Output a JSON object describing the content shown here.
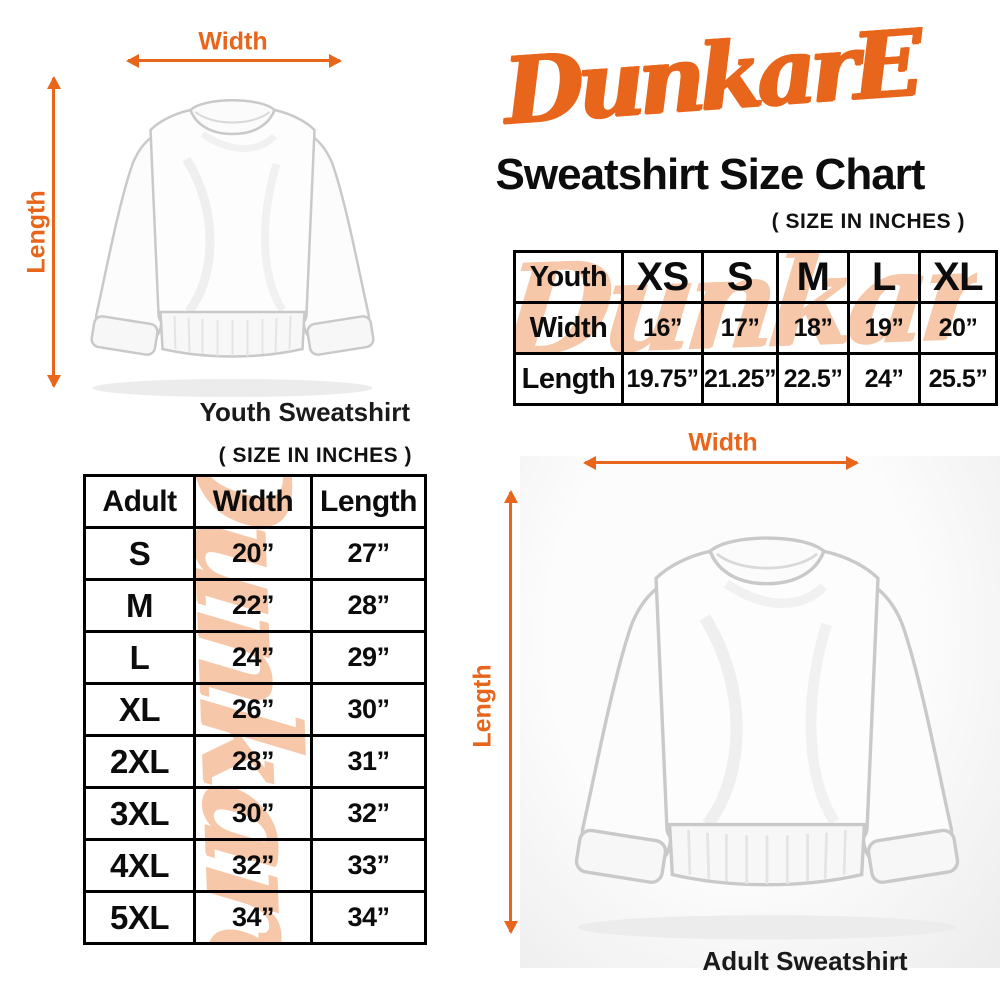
{
  "colors": {
    "accent_orange": "#E8651C",
    "watermark_peach": "#F6C7A8",
    "table_border": "#000000",
    "text_black": "#111111"
  },
  "brand": {
    "logo_text": "DunkarE",
    "title": "Sweatshirt Size Chart",
    "watermark_text": "Dunkare"
  },
  "youth_figure": {
    "width_label": "Width",
    "length_label": "Length",
    "caption": "Youth Sweatshirt"
  },
  "adult_figure": {
    "width_label": "Width",
    "length_label": "Length",
    "caption": "Adult Sweatshirt"
  },
  "youth_table": {
    "size_note": "( SIZE IN INCHES )",
    "header_label": "Youth",
    "sizes": [
      "XS",
      "S",
      "M",
      "L",
      "XL"
    ],
    "rows": [
      {
        "label": "Width",
        "values": [
          "16”",
          "17”",
          "18”",
          "19”",
          "20”"
        ]
      },
      {
        "label": "Length",
        "values": [
          "19.75”",
          "21.25”",
          "22.5”",
          "24”",
          "25.5”"
        ]
      }
    ]
  },
  "adult_table": {
    "size_note": "( SIZE IN INCHES )",
    "headers": [
      "Adult",
      "Width",
      "Length"
    ],
    "rows": [
      [
        "S",
        "20”",
        "27”"
      ],
      [
        "M",
        "22”",
        "28”"
      ],
      [
        "L",
        "24”",
        "29”"
      ],
      [
        "XL",
        "26”",
        "30”"
      ],
      [
        "2XL",
        "28”",
        "31”"
      ],
      [
        "3XL",
        "30”",
        "32”"
      ],
      [
        "4XL",
        "32”",
        "33”"
      ],
      [
        "5XL",
        "34”",
        "34”"
      ]
    ]
  },
  "chart_data": [
    {
      "type": "table",
      "title": "Youth Sweatshirt Size Chart",
      "units": "inches",
      "columns": [
        "Youth",
        "XS",
        "S",
        "M",
        "L",
        "XL"
      ],
      "rows": [
        [
          "Width",
          16,
          17,
          18,
          19,
          20
        ],
        [
          "Length",
          19.75,
          21.25,
          22.5,
          24,
          25.5
        ]
      ]
    },
    {
      "type": "table",
      "title": "Adult Sweatshirt Size Chart",
      "units": "inches",
      "columns": [
        "Adult",
        "Width",
        "Length"
      ],
      "rows": [
        [
          "S",
          20,
          27
        ],
        [
          "M",
          22,
          28
        ],
        [
          "L",
          24,
          29
        ],
        [
          "XL",
          26,
          30
        ],
        [
          "2XL",
          28,
          31
        ],
        [
          "3XL",
          30,
          32
        ],
        [
          "4XL",
          32,
          33
        ],
        [
          "5XL",
          34,
          34
        ]
      ]
    }
  ]
}
